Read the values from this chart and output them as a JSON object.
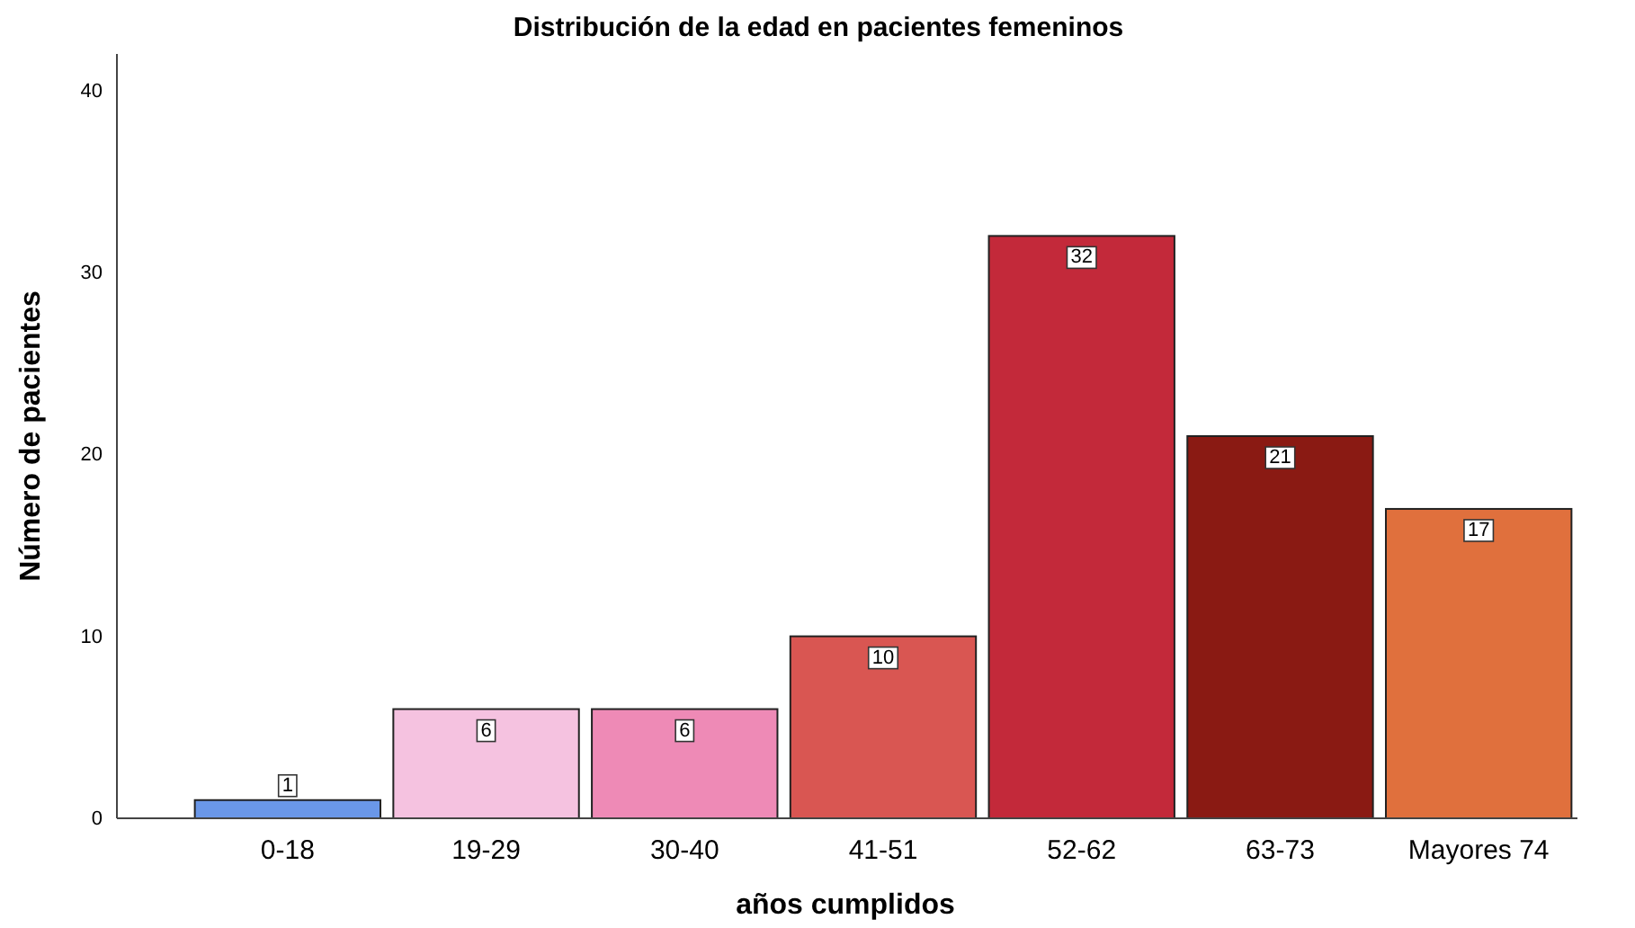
{
  "chart_data": {
    "type": "bar",
    "title": "Distribución de la edad en pacientes femeninos",
    "xlabel": "años cumplidos",
    "ylabel": "Número de pacientes",
    "categories": [
      "0-18",
      "19-29",
      "30-40",
      "41-51",
      "52-62",
      "63-73",
      "Mayores 74"
    ],
    "values": [
      1,
      6,
      6,
      10,
      32,
      21,
      17
    ],
    "colors": [
      "#6a97e8",
      "#f5c2e0",
      "#ee8ab6",
      "#d95652",
      "#c3293a",
      "#8a1a13",
      "#e0703d"
    ],
    "ylim": [
      0,
      42
    ],
    "yticks": [
      0,
      10,
      20,
      30,
      40
    ],
    "data_labels": true
  }
}
